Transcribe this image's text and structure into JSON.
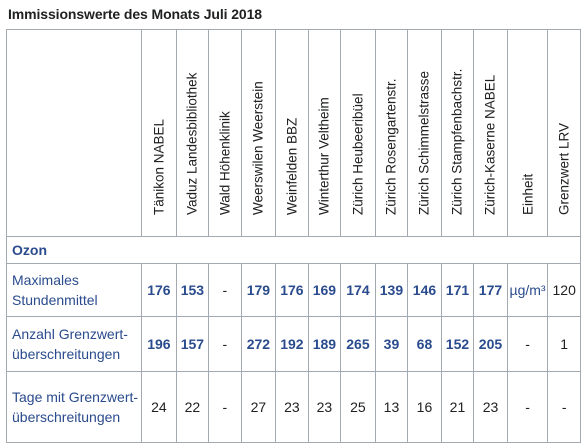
{
  "title": "Immissionswerte des Monats Juli 2018",
  "columns": [
    "Tänikon NABEL",
    "Vaduz Landesbibliothek",
    "Wald Höhenklinik",
    "Weerswilen Weerstein",
    "Weinfelden BBZ",
    "Winterthur Veltheim",
    "Zürich Heubeeribüel",
    "Zürich Rosengartenstr.",
    "Zürich Schimmelstrasse",
    "Zürich Stampfenbachstr.",
    "Zürich-Kaserne NABEL",
    "Einheit",
    "Grenzwert LRV"
  ],
  "section": "Ozon",
  "rows": [
    {
      "label": "Maximales Stundenmittel",
      "values": [
        "176",
        "153",
        "-",
        "179",
        "176",
        "169",
        "174",
        "139",
        "146",
        "171",
        "177",
        "µg/m³",
        "120"
      ]
    },
    {
      "label": "Anzahl Grenzwert-überschreitungen",
      "values": [
        "196",
        "157",
        "-",
        "272",
        "192",
        "189",
        "265",
        "39",
        "68",
        "152",
        "205",
        "-",
        "1"
      ]
    },
    {
      "label": "Tage mit Grenzwert-überschreitungen",
      "values": [
        "24",
        "22",
        "-",
        "27",
        "23",
        "23",
        "25",
        "13",
        "16",
        "21",
        "23",
        "-",
        "-"
      ]
    }
  ]
}
